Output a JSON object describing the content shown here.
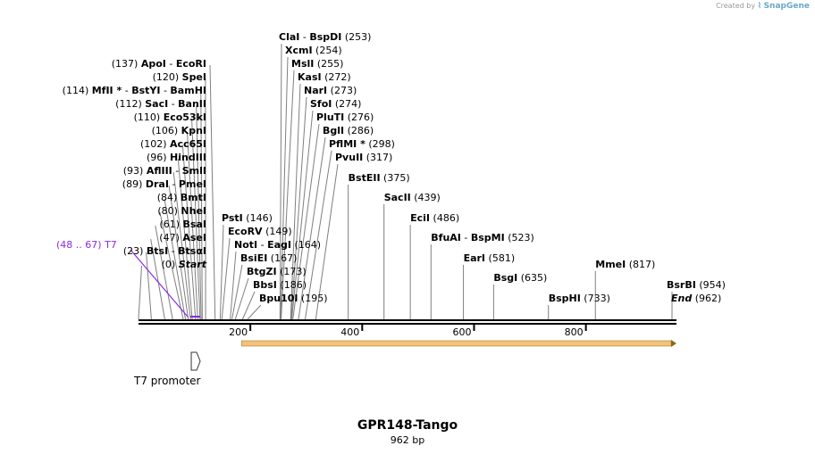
{
  "credit": {
    "prefix": "Created by",
    "brand": "SnapGene"
  },
  "map": {
    "name": "GPR148-Tango",
    "length_label": "962 bp",
    "length": 962,
    "ticks": [
      200,
      400,
      600,
      800
    ]
  },
  "sites_left": [
    {
      "pos": "(137)",
      "parts": [
        "ApoI",
        "-",
        "EcoRI"
      ],
      "loc": 137
    },
    {
      "pos": "(120)",
      "parts": [
        "SpeI"
      ],
      "loc": 120
    },
    {
      "pos": "(114)",
      "parts": [
        "MfII *",
        "-",
        "BstYI",
        "-",
        "BamHI"
      ],
      "loc": 114
    },
    {
      "pos": "(112)",
      "parts": [
        "SacI",
        "-",
        "BanII"
      ],
      "loc": 112
    },
    {
      "pos": "(110)",
      "parts": [
        "Eco53kI"
      ],
      "loc": 110
    },
    {
      "pos": "(106)",
      "parts": [
        "KpnI"
      ],
      "loc": 106
    },
    {
      "pos": "(102)",
      "parts": [
        "Acc65I"
      ],
      "loc": 102
    },
    {
      "pos": "(96)",
      "parts": [
        "HindIII"
      ],
      "loc": 96
    },
    {
      "pos": "(93)",
      "parts": [
        "AflIII",
        "-",
        "SmlI"
      ],
      "loc": 93
    },
    {
      "pos": "(89)",
      "parts": [
        "DraI",
        "-",
        "PmeI"
      ],
      "loc": 89
    },
    {
      "pos": "(84)",
      "parts": [
        "BmtI"
      ],
      "loc": 84
    },
    {
      "pos": "(80)",
      "parts": [
        "NheI"
      ],
      "loc": 80
    },
    {
      "pos": "(61)",
      "parts": [
        "BsaI"
      ],
      "loc": 61
    },
    {
      "pos": "(47)",
      "parts": [
        "AseI"
      ],
      "loc": 47
    },
    {
      "pos": "(23)",
      "parts": [
        "BtsI",
        "-",
        "BtsαI"
      ],
      "loc": 23
    },
    {
      "pos": "(0)",
      "parts": [
        "Start"
      ],
      "loc": 0
    }
  ],
  "feature_label": {
    "range": "(48 .. 67)",
    "name": "T7",
    "start": 48,
    "end": 67
  },
  "sites_mid": [
    {
      "name": "ClaI",
      "name2": "BspDI",
      "pos": "(253)",
      "loc": 253
    },
    {
      "name": "XcmI",
      "pos": "(254)",
      "loc": 254
    },
    {
      "name": "MslI",
      "pos": "(255)",
      "loc": 255
    },
    {
      "name": "KasI",
      "pos": "(272)",
      "loc": 272
    },
    {
      "name": "NarI",
      "pos": "(273)",
      "loc": 273
    },
    {
      "name": "SfoI",
      "pos": "(274)",
      "loc": 274
    },
    {
      "name": "PluTI",
      "pos": "(276)",
      "loc": 276
    },
    {
      "name": "BglI",
      "pos": "(286)",
      "loc": 286
    },
    {
      "name": "PflMI *",
      "pos": "(298)",
      "loc": 298
    },
    {
      "name": "PvuII",
      "pos": "(317)",
      "loc": 317
    }
  ],
  "sites_lower": [
    {
      "name": "PstI",
      "pos": "(146)",
      "loc": 146
    },
    {
      "name": "EcoRV",
      "pos": "(149)",
      "loc": 149
    },
    {
      "name": "NotI",
      "name2": "EagI",
      "pos": "(164)",
      "loc": 164
    },
    {
      "name": "BsiEI",
      "pos": "(167)",
      "loc": 167
    },
    {
      "name": "BtgZI",
      "pos": "(173)",
      "loc": 173
    },
    {
      "name": "BbsI",
      "pos": "(186)",
      "loc": 186
    },
    {
      "name": "Bpu10I",
      "pos": "(195)",
      "loc": 195
    }
  ],
  "sites_right": [
    {
      "name": "BstEII",
      "pos": "(375)",
      "loc": 375
    },
    {
      "name": "SacII",
      "pos": "(439)",
      "loc": 439
    },
    {
      "name": "EciI",
      "pos": "(486)",
      "loc": 486
    },
    {
      "name": "BfuAI",
      "name2": "BspMI",
      "pos": "(523)",
      "loc": 523
    },
    {
      "name": "EarI",
      "pos": "(581)",
      "loc": 581
    },
    {
      "name": "BsgI",
      "pos": "(635)",
      "loc": 635
    },
    {
      "name": "BspHI",
      "pos": "(733)",
      "loc": 733
    },
    {
      "name": "MmeI",
      "pos": "(817)",
      "loc": 817
    },
    {
      "name": "BsrBI",
      "pos": "(954)",
      "loc": 954
    },
    {
      "name": "End",
      "pos": "(962)",
      "loc": 962
    }
  ],
  "features": {
    "promoter": {
      "name": "T7 promoter",
      "start": 48,
      "end": 67
    },
    "orf": {
      "start": 178,
      "end": 962,
      "color": "#f5c27a",
      "stroke": "#8b6914"
    }
  },
  "colors": {
    "feature_text": "#8a2be2",
    "line": "#7f7f7f",
    "backbone": "#000000"
  }
}
